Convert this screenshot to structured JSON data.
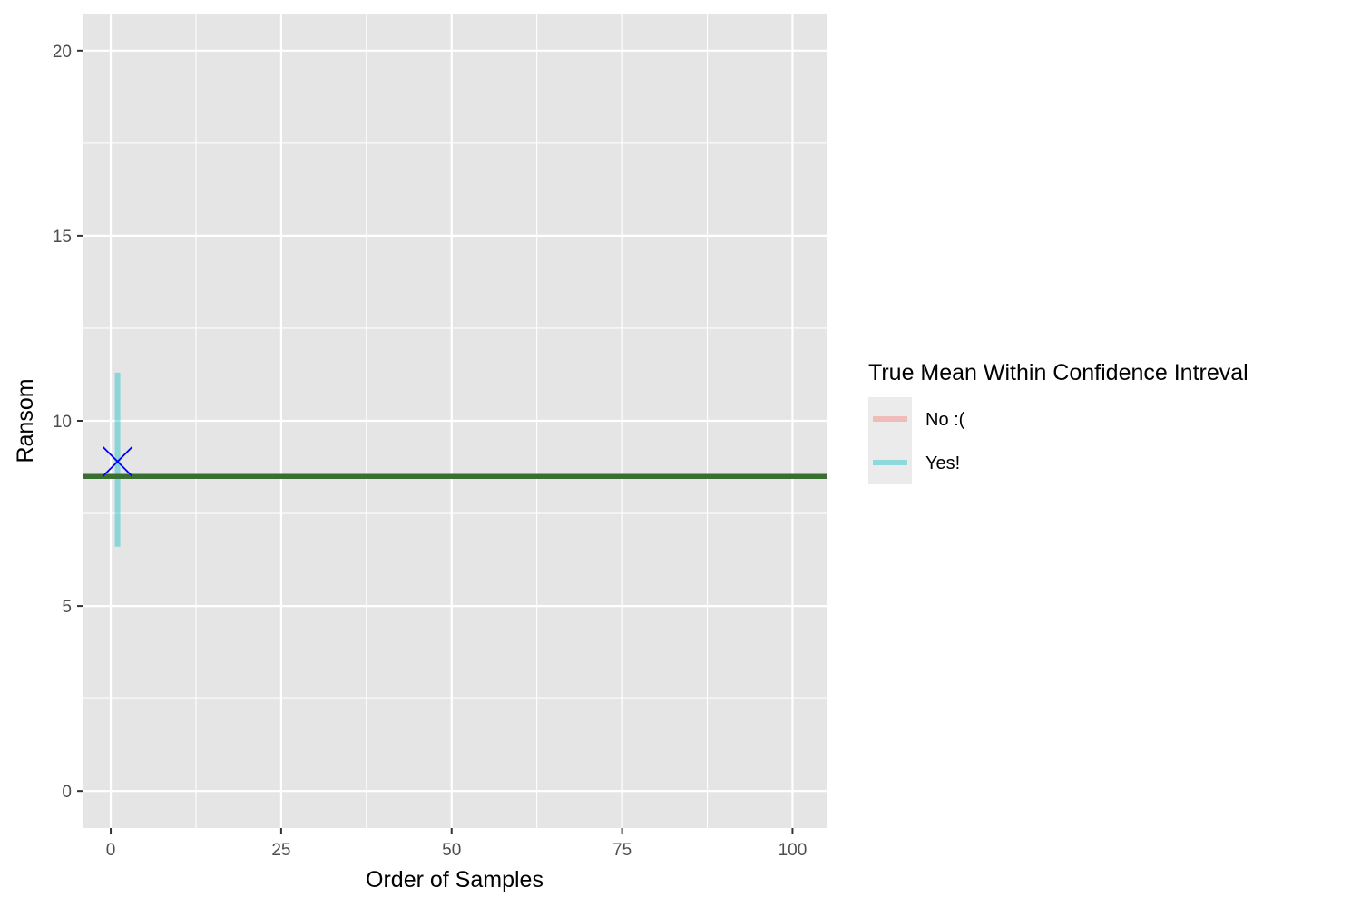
{
  "chart_data": {
    "type": "scatter",
    "title": "",
    "xlabel": "Order of Samples",
    "ylabel": "Ransom",
    "xlim": [
      -4,
      105
    ],
    "ylim": [
      -1,
      21
    ],
    "x_ticks": [
      0,
      25,
      50,
      75,
      100
    ],
    "x_tick_labels": [
      "0",
      "25",
      "50",
      "75",
      "100"
    ],
    "y_ticks": [
      0,
      5,
      10,
      15,
      20
    ],
    "y_tick_labels": [
      "0",
      "5",
      "10",
      "15",
      "20"
    ],
    "grid": true,
    "background": "#e5e5e5",
    "true_mean": {
      "value": 8.5,
      "color": "#3a6e33"
    },
    "intervals": [
      {
        "x": 1,
        "lower": 6.6,
        "upper": 11.3,
        "mean": 8.9,
        "within": "Yes!"
      }
    ],
    "mean_marker_color": "#0000ff",
    "legend": {
      "title": "True Mean Within Confidence Intreval",
      "position": "right",
      "entries": [
        {
          "label": "No :(",
          "color": "#f8766d"
        },
        {
          "label": "Yes!",
          "color": "#00bfc4"
        }
      ]
    }
  }
}
